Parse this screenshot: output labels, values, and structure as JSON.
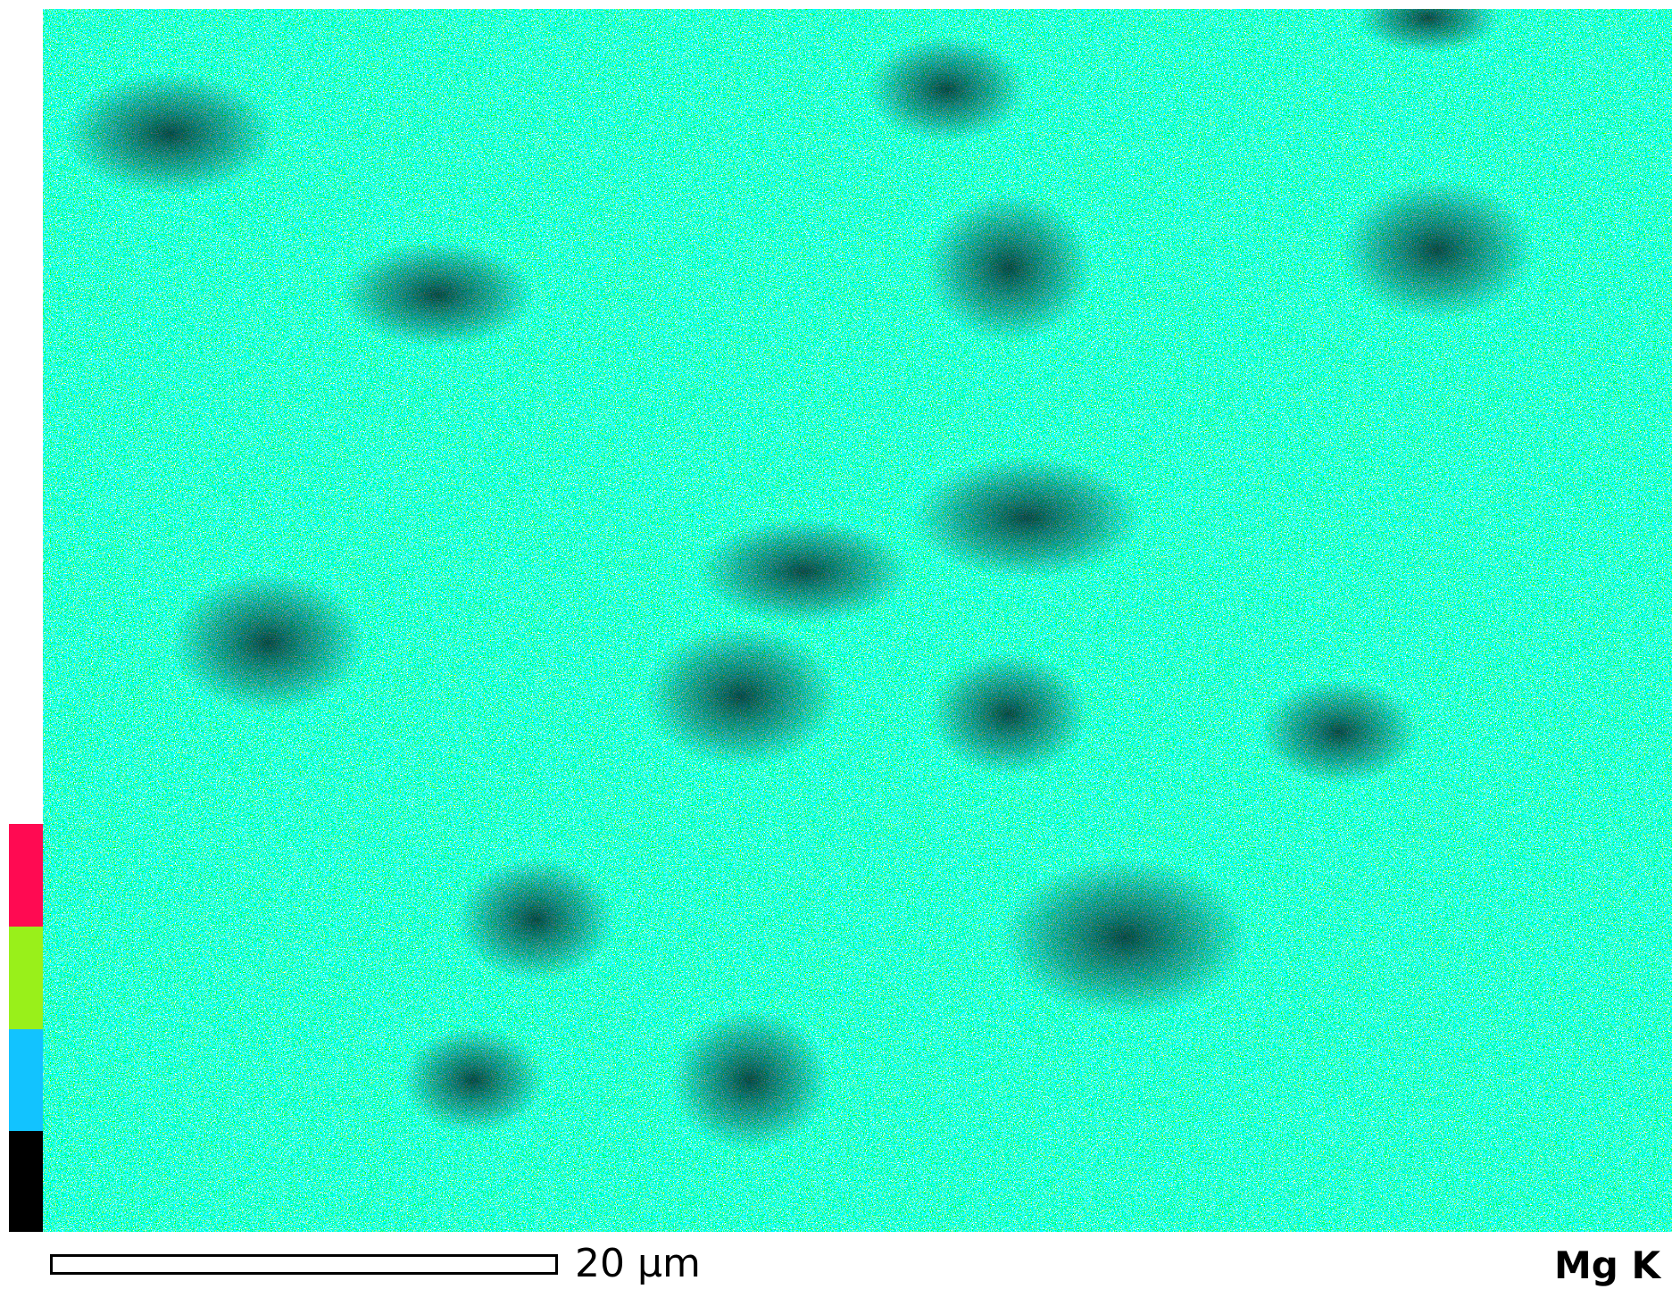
{
  "scale_bar": {
    "label": "20 µm"
  },
  "map": {
    "element": "Mg K"
  }
}
